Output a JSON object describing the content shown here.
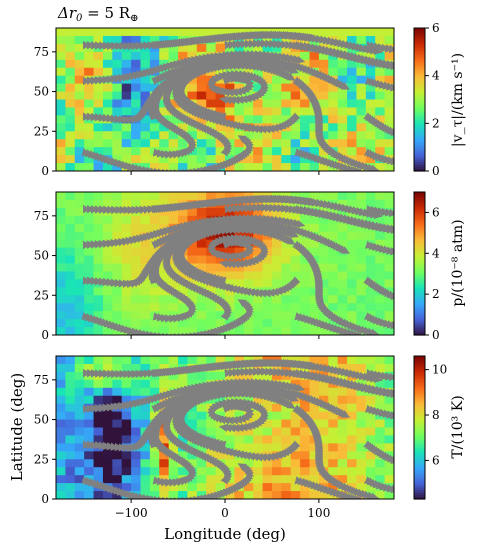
{
  "figure": {
    "title_main": "Δr",
    "title_sub": "0",
    "title_rest": " = 5 R",
    "title_sup": "⊕",
    "xlabel": "Longitude (deg)",
    "ylabel": "Latitude (deg)"
  },
  "colors": {
    "streamline": "#808080",
    "colormap": [
      "#30123b",
      "#4662d7",
      "#36aaf9",
      "#1ae4b6",
      "#72fe5e",
      "#c7ef34",
      "#fabb39",
      "#f66b19",
      "#ca2a04",
      "#7a0403"
    ]
  },
  "chart_data": [
    {
      "type": "heatmap",
      "quantity": "|v_τ|",
      "colorbar_label": "|v_τ|/(km s⁻¹)",
      "xlim": [
        -180,
        180
      ],
      "ylim": [
        0,
        90
      ],
      "clim": [
        0,
        6
      ],
      "x_ticks": [
        "-100",
        "0",
        "100"
      ],
      "y_ticks": [
        "0",
        "25",
        "50",
        "75"
      ],
      "cbar_ticks": [
        "0",
        "2",
        "4",
        "6"
      ],
      "grid": false,
      "overlay": "streamlines"
    },
    {
      "type": "heatmap",
      "quantity": "p",
      "colorbar_label": "p/(10⁻⁸ atm)",
      "xlim": [
        -180,
        180
      ],
      "ylim": [
        0,
        90
      ],
      "clim": [
        0,
        7
      ],
      "x_ticks": [
        "-100",
        "0",
        "100"
      ],
      "y_ticks": [
        "0",
        "25",
        "50",
        "75"
      ],
      "cbar_ticks": [
        "0",
        "2",
        "4",
        "6"
      ],
      "grid": false,
      "overlay": "streamlines"
    },
    {
      "type": "heatmap",
      "quantity": "T",
      "colorbar_label": "T/(10³ K)",
      "xlim": [
        -180,
        180
      ],
      "ylim": [
        0,
        90
      ],
      "clim": [
        4.3,
        10.6
      ],
      "x_ticks": [
        "-100",
        "0",
        "100"
      ],
      "y_ticks": [
        "0",
        "25",
        "50",
        "75"
      ],
      "cbar_ticks": [
        "6",
        "8",
        "10"
      ],
      "grid": false,
      "overlay": "streamlines"
    }
  ]
}
